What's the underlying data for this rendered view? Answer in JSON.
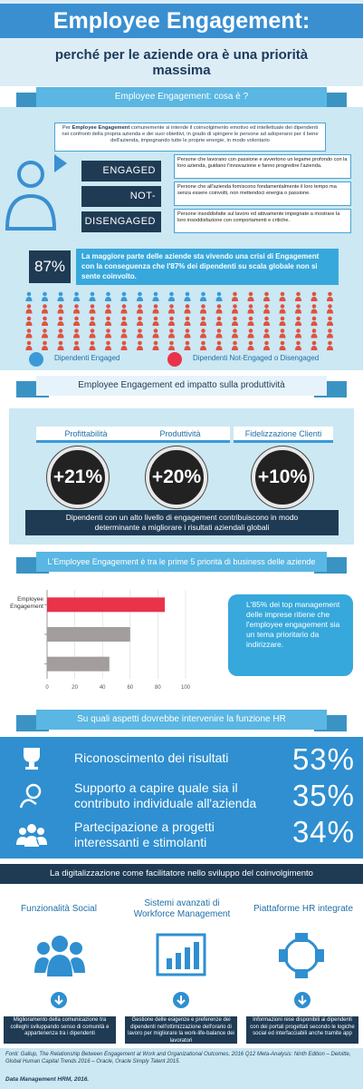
{
  "header": {
    "title": "Employee Engagement:",
    "subtitle": "perché per le aziende ora è una priorità massima"
  },
  "definition": {
    "heading": "Employee Engagement: cosa è ?",
    "text_before": "Per ",
    "term": "Employee Engagement",
    "text_after": " comunemente si intende il coinvolgimento emotivo ed intellettuale dei dipendenti nei confronti della propria azienda e dei suoi obiettivi, in grado di spingere le persone ad adoperarsi per il bene dell'azienda, impegnando tutte le proprie energie, in modo volontario",
    "levels": [
      {
        "label": "ENGAGED",
        "description": "Persone che lavorano con passione e avvertono un legame profondo con la loro azienda, guidano l'innovazione e fanno progredire l'azienda."
      },
      {
        "label": "NOT-ENGAGED",
        "description": "Persone che all'azienda forniscono fondamentalmente il loro tempo ma senza essere coinvolti, non mettendoci energia o passione."
      },
      {
        "label": "DISENGAGED",
        "description": "Persone insoddisfatte sul lavoro ed attivamente impegnate a mostrare la loro insoddisfazione con comportamenti e critiche."
      }
    ],
    "stat": "87%",
    "stat_text": "La maggiore parte delle aziende sta vivendo una crisi di Engagement con la conseguenza che l'87% dei dipendenti su scala globale non si sente coinvolto.",
    "legend": [
      "Dipendenti Engaged",
      "Dipendenti Not-Engaged o Disengaged"
    ]
  },
  "impact": {
    "heading": "Employee Engagement ed impatto sulla produttività",
    "metrics": [
      {
        "label": "Profittabilità",
        "value": "+21%"
      },
      {
        "label": "Produttività",
        "value": "+20%"
      },
      {
        "label": "Fidelizzazione Clienti",
        "value": "+10%"
      }
    ],
    "note": "Dipendenti con un alto livello di engagement contribuiscono in modo determinante a migliorare i risultati aziendali globali"
  },
  "priority": {
    "heading": "L'Employee Engagement è tra le prime 5 priorità di business delle aziende",
    "callout": "L'85% dei top management delle imprese ritiene che l'employee engagement sia un tema  prioritario da indirizzare."
  },
  "chart_data": {
    "type": "bar",
    "orientation": "horizontal",
    "categories": [
      "Employee Engagement",
      null,
      null
    ],
    "values": [
      85,
      60,
      45
    ],
    "colors": [
      "#e8334a",
      "#a39d9d",
      "#a39d9d"
    ],
    "xlim": [
      0,
      100
    ],
    "xticks": [
      0,
      20,
      40,
      60,
      80,
      100
    ],
    "grid": true
  },
  "hr": {
    "heading": "Su quali aspetti dovrebbe intervenire la funzione HR",
    "items": [
      {
        "text": "Riconoscimento dei risultati",
        "value": "53%"
      },
      {
        "text": "Supporto a capire quale sia il contributo individuale all'azienda",
        "value": "35%"
      },
      {
        "text": "Partecipazione a progetti interessanti e stimolanti",
        "value": "34%"
      }
    ]
  },
  "digital": {
    "heading": "La digitalizzazione come facilitatore nello sviluppo del coinvolgimento",
    "columns": [
      {
        "title": "Funzionalità Social",
        "description": "Miglioramento della comunicazione tra colleghi sviluppando senso di comunità e appartenenza tra i dipendenti"
      },
      {
        "title": "Sistemi avanzati di Workforce Management",
        "description": "Gestione delle esigenze e preferenze dei dipendenti nell'ottimizzazione dell'orario di lavoro per migliorare la work-life-balance dei lavoratori"
      },
      {
        "title": "Piattaforme HR integrate",
        "description": "Informazioni rese disponibili ai dipendenti con dei portali progettati secondo le logiche social ed interfacciabili anche tramite app"
      }
    ]
  },
  "footer": {
    "sources": "Fonti: Gallup, The Relationship Between Engagement at Work and Organizational Outcomes, 2016 Q12 Meta-Analysis: Ninth Edition – Deloitte, Global Human Capital Trends 2016 – Oracle, Oracle Simply Talent 2015.",
    "credit": "Data Management HRM, 2016."
  }
}
